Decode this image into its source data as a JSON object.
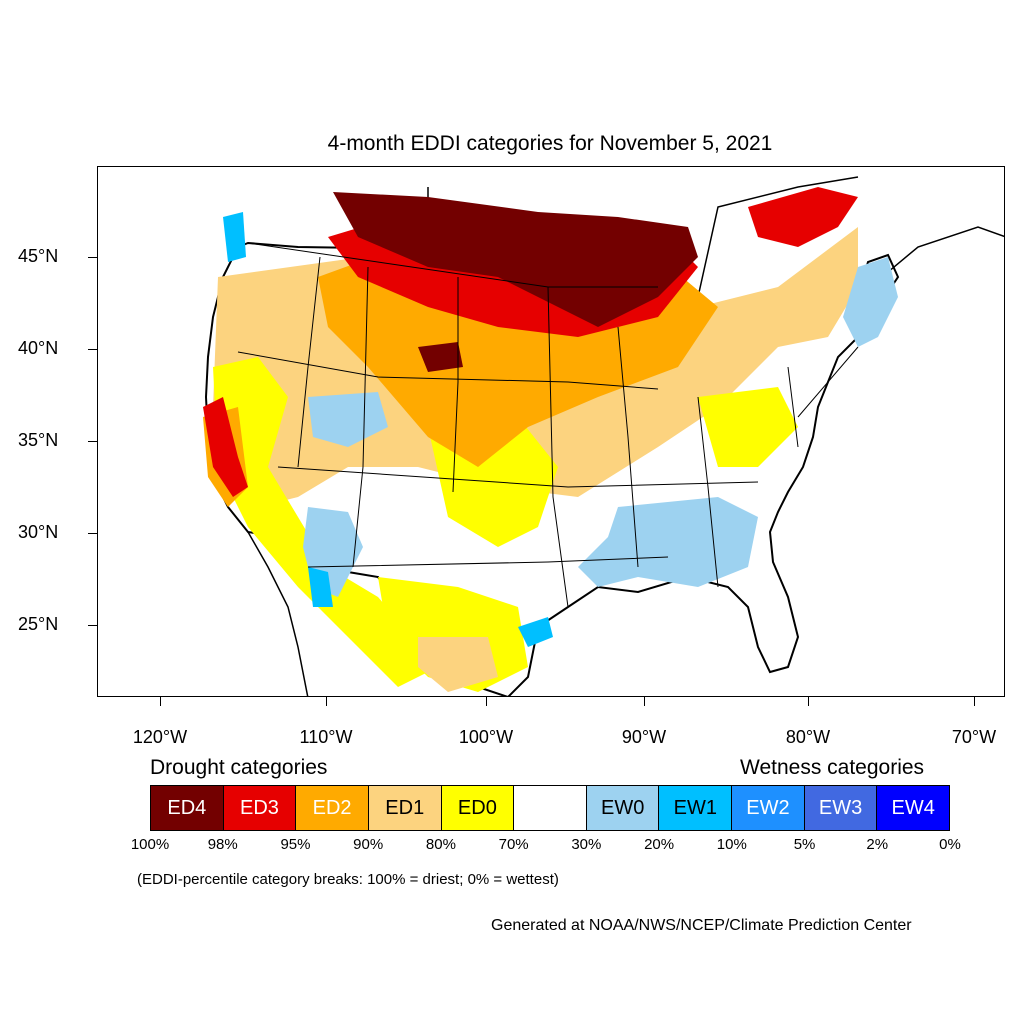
{
  "title": "4-month EDDI categories for November 5, 2021",
  "lat_labels": [
    "45°N",
    "40°N",
    "35°N",
    "30°N",
    "25°N"
  ],
  "lon_labels": [
    "120°W",
    "110°W",
    "100°W",
    "90°W",
    "80°W",
    "70°W"
  ],
  "legend": {
    "drought_heading": "Drought categories",
    "wetness_heading": "Wetness categories",
    "categories": [
      {
        "label": "ED4",
        "color": "#730000",
        "text_color": "#ffffff"
      },
      {
        "label": "ED3",
        "color": "#e60000",
        "text_color": "#ffffff"
      },
      {
        "label": "ED2",
        "color": "#ffaa00",
        "text_color": "#ffffff"
      },
      {
        "label": "ED1",
        "color": "#fcd37f",
        "text_color": "#000000"
      },
      {
        "label": "ED0",
        "color": "#ffff00",
        "text_color": "#000000"
      },
      {
        "label": "",
        "color": "#ffffff",
        "text_color": "#000000"
      },
      {
        "label": "EW0",
        "color": "#9dd2f0",
        "text_color": "#000000"
      },
      {
        "label": "EW1",
        "color": "#00bfff",
        "text_color": "#000000"
      },
      {
        "label": "EW2",
        "color": "#1e90ff",
        "text_color": "#ffffff"
      },
      {
        "label": "EW3",
        "color": "#4169e1",
        "text_color": "#ffffff"
      },
      {
        "label": "EW4",
        "color": "#0000ff",
        "text_color": "#ffffff"
      }
    ],
    "breaks": [
      "100%",
      "98%",
      "95%",
      "90%",
      "80%",
      "70%",
      "30%",
      "20%",
      "10%",
      "5%",
      "2%",
      "0%"
    ]
  },
  "note": "(EDDI-percentile category breaks: 100% = driest; 0% = wettest)",
  "credit": "Generated at NOAA/NWS/NCEP/Climate Prediction Center"
}
